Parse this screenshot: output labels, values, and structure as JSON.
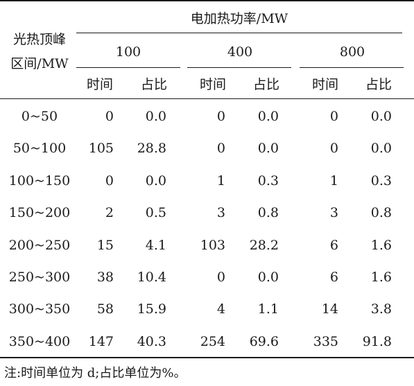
{
  "table": {
    "stub_header": [
      "光热顶峰",
      "区间/MW"
    ],
    "spanner": "电加热功率/MW",
    "groups": [
      "100",
      "400",
      "800"
    ],
    "sub_headers": [
      "时间",
      "占比",
      "时间",
      "占比",
      "时间",
      "占比"
    ],
    "rows": [
      {
        "label": "0~50",
        "cells": [
          "0",
          "0.0",
          "0",
          "0.0",
          "0",
          "0.0"
        ]
      },
      {
        "label": "50~100",
        "cells": [
          "105",
          "28.8",
          "0",
          "0.0",
          "0",
          "0.0"
        ]
      },
      {
        "label": "100~150",
        "cells": [
          "0",
          "0.0",
          "1",
          "0.3",
          "1",
          "0.3"
        ]
      },
      {
        "label": "150~200",
        "cells": [
          "2",
          "0.5",
          "3",
          "0.8",
          "3",
          "0.8"
        ]
      },
      {
        "label": "200~250",
        "cells": [
          "15",
          "4.1",
          "103",
          "28.2",
          "6",
          "1.6"
        ]
      },
      {
        "label": "250~300",
        "cells": [
          "38",
          "10.4",
          "0",
          "0.0",
          "6",
          "1.6"
        ]
      },
      {
        "label": "300~350",
        "cells": [
          "58",
          "15.9",
          "4",
          "1.1",
          "14",
          "3.8"
        ]
      },
      {
        "label": "350~400",
        "cells": [
          "147",
          "40.3",
          "254",
          "69.6",
          "335",
          "91.8"
        ]
      }
    ]
  },
  "note": "注:时间单位为 d;占比单位为%。"
}
